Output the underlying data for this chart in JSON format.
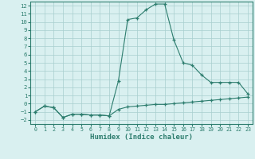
{
  "xlabel": "Humidex (Indice chaleur)",
  "line1_x": [
    0,
    1,
    2,
    3,
    4,
    5,
    6,
    7,
    8,
    9,
    10,
    11,
    12,
    13,
    14,
    15,
    16,
    17,
    18,
    19,
    20,
    21,
    22,
    23
  ],
  "line1_y": [
    -1.0,
    -0.3,
    -0.5,
    -1.7,
    -1.3,
    -1.3,
    -1.4,
    -1.4,
    -1.5,
    -0.7,
    -0.4,
    -0.3,
    -0.2,
    -0.1,
    -0.1,
    0.0,
    0.1,
    0.2,
    0.3,
    0.4,
    0.5,
    0.6,
    0.7,
    0.8
  ],
  "line2_x": [
    0,
    1,
    2,
    3,
    4,
    5,
    6,
    7,
    8,
    9,
    10,
    11,
    12,
    13,
    14,
    15,
    16,
    17,
    18,
    19,
    20,
    21,
    22,
    23
  ],
  "line2_y": [
    -1.0,
    -0.3,
    -0.5,
    -1.7,
    -1.3,
    -1.3,
    -1.4,
    -1.4,
    -1.5,
    2.8,
    10.3,
    10.5,
    11.5,
    12.2,
    12.2,
    7.8,
    5.0,
    4.7,
    3.5,
    2.6,
    2.6,
    2.6,
    2.6,
    1.2
  ],
  "line_color": "#2d7d6e",
  "bg_color": "#d9f0f0",
  "grid_color": "#a8cece",
  "xlim": [
    -0.5,
    23.5
  ],
  "ylim": [
    -2.5,
    12.5
  ],
  "yticks": [
    -2,
    -1,
    0,
    1,
    2,
    3,
    4,
    5,
    6,
    7,
    8,
    9,
    10,
    11,
    12
  ],
  "xticks": [
    0,
    1,
    2,
    3,
    4,
    5,
    6,
    7,
    8,
    9,
    10,
    11,
    12,
    13,
    14,
    15,
    16,
    17,
    18,
    19,
    20,
    21,
    22,
    23
  ]
}
